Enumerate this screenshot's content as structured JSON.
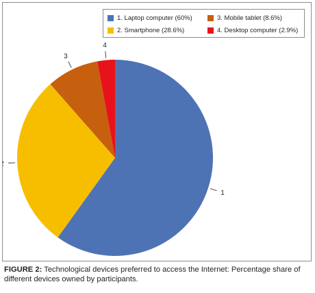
{
  "chart_data": {
    "type": "pie",
    "slices": [
      {
        "id": "1",
        "label": "1. Laptop computer (60%)",
        "value": 60.0,
        "color": "#4e73b5"
      },
      {
        "id": "2",
        "label": "2. Smartphone (28.6%)",
        "value": 28.6,
        "color": "#f7be00"
      },
      {
        "id": "3",
        "label": "3. Mobile tablet (8.6%)",
        "value": 8.6,
        "color": "#c65f0e"
      },
      {
        "id": "4",
        "label": "4. Desktop computer (2.9%)",
        "value": 2.9,
        "color": "#e8121c"
      }
    ],
    "legend_placement": "top-right",
    "start_angle_deg": 0,
    "direction": "clockwise"
  },
  "legend_order": [
    0,
    2,
    1,
    3
  ],
  "caption": {
    "label": "FIGURE 2:",
    "text": " Technological devices preferred to access the Internet: Percentage share of different devices owned by participants."
  }
}
